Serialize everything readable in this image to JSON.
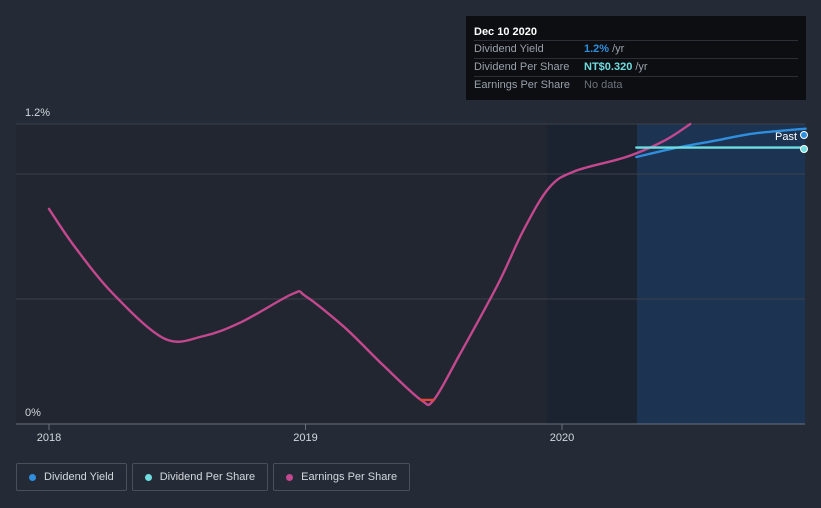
{
  "chart_data": {
    "type": "line",
    "title": "",
    "x_ticks": [
      "2018",
      "2019",
      "2020"
    ],
    "y_ticks": [
      "1.2%",
      "0%"
    ],
    "past_label": "Past",
    "series": [
      {
        "name": "Dividend Yield",
        "color": "#2f8fde",
        "points": [
          [
            2020.29,
            1.06
          ],
          [
            2020.45,
            1.1
          ],
          [
            2020.6,
            1.13
          ],
          [
            2020.75,
            1.16
          ],
          [
            2020.95,
            1.18
          ]
        ]
      },
      {
        "name": "Dividend Per Share",
        "color": "#6fdde0",
        "points": [
          [
            2020.29,
            1.1
          ],
          [
            2020.95,
            1.1
          ]
        ]
      },
      {
        "name": "Earnings Per Share",
        "color": "#c4488f",
        "points": [
          [
            2018.0,
            0.84
          ],
          [
            2018.1,
            0.68
          ],
          [
            2018.25,
            0.48
          ],
          [
            2018.45,
            0.29
          ],
          [
            2018.6,
            0.3
          ],
          [
            2018.75,
            0.36
          ],
          [
            2018.95,
            0.48
          ],
          [
            2019.0,
            0.47
          ],
          [
            2019.15,
            0.34
          ],
          [
            2019.3,
            0.18
          ],
          [
            2019.45,
            0.03
          ],
          [
            2019.5,
            0.03
          ],
          [
            2019.6,
            0.22
          ],
          [
            2019.75,
            0.52
          ],
          [
            2019.85,
            0.75
          ],
          [
            2019.95,
            0.93
          ],
          [
            2020.05,
            1.0
          ],
          [
            2020.25,
            1.06
          ],
          [
            2020.4,
            1.13
          ],
          [
            2020.5,
            1.2
          ]
        ]
      }
    ]
  },
  "tooltip": {
    "date": "Dec 10 2020",
    "rows": [
      {
        "label": "Dividend Yield",
        "value": "1.2%",
        "unit": "/yr",
        "color": "#2f8fde"
      },
      {
        "label": "Dividend Per Share",
        "value": "NT$0.320",
        "unit": "/yr",
        "color": "#6fdde0"
      },
      {
        "label": "Earnings Per Share",
        "value": "No data",
        "unit": "",
        "color": "#6d737c"
      }
    ]
  },
  "legend": [
    {
      "label": "Dividend Yield",
      "color": "#2f8fde"
    },
    {
      "label": "Dividend Per Share",
      "color": "#6fdde0"
    },
    {
      "label": "Earnings Per Share",
      "color": "#c4488f"
    }
  ]
}
